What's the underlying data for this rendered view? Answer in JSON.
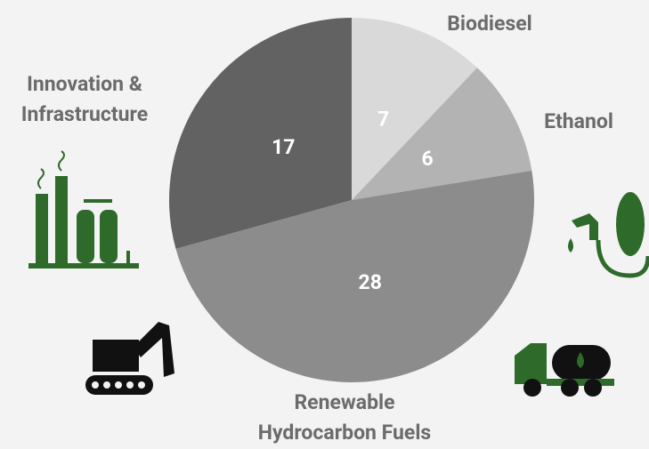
{
  "chart_data": {
    "type": "pie",
    "categories": [
      "Biodiesel",
      "Ethanol",
      "Renewable Hydrocarbon Fuels",
      "Innovation & Infrastructure"
    ],
    "values": [
      7,
      6,
      28,
      17
    ],
    "colors": [
      "#d9d9d9",
      "#b3b3b3",
      "#8c8c8c",
      "#626262"
    ]
  }
}
